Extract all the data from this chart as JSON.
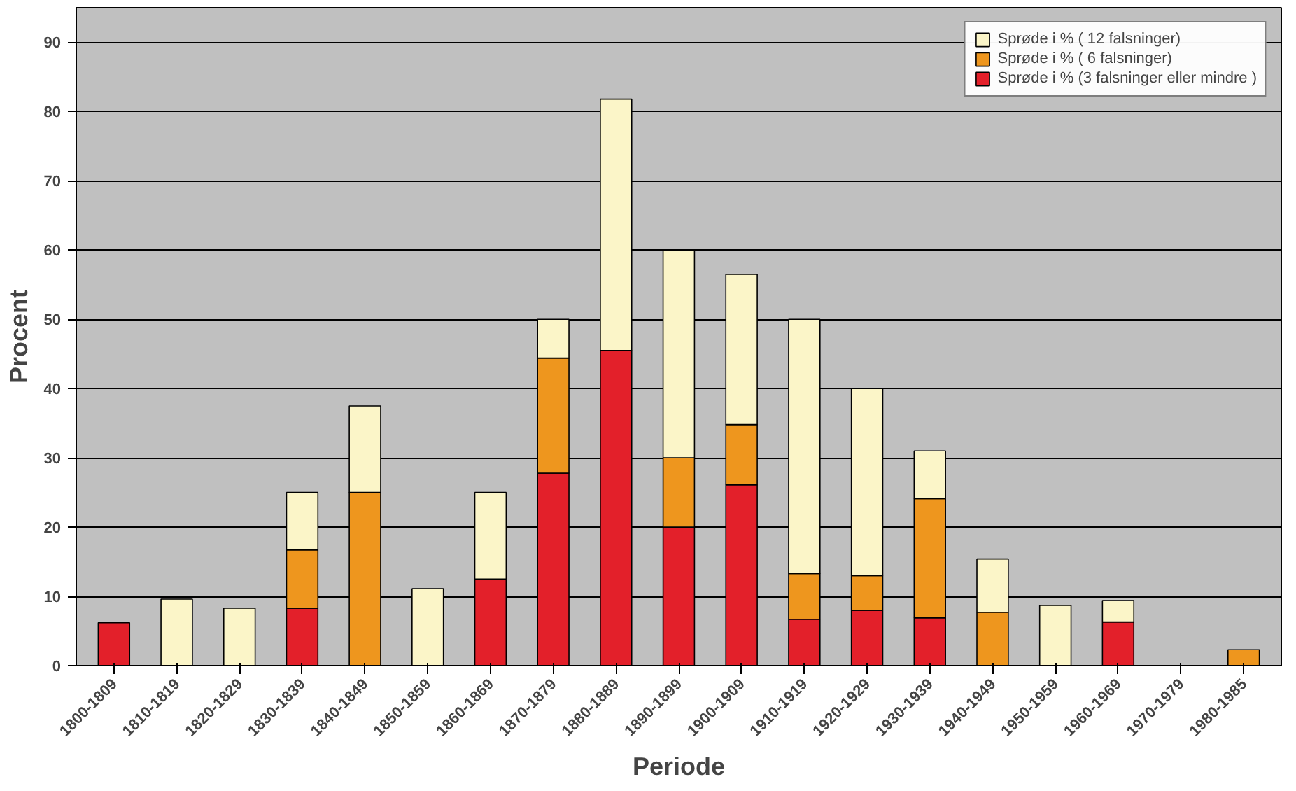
{
  "chart_data": {
    "type": "bar",
    "stacked": true,
    "xlabel": "Periode",
    "ylabel": "Procent",
    "categories": [
      "1800-1809",
      "1810-1819",
      "1820-1829",
      "1830-1839",
      "1840-1849",
      "1850-1859",
      "1860-1869",
      "1870-1879",
      "1880-1889",
      "1890-1899",
      "1900-1909",
      "1910-1919",
      "1920-1929",
      "1930-1939",
      "1940-1949",
      "1950-1959",
      "1960-1969",
      "1970-1979",
      "1980-1985"
    ],
    "series": [
      {
        "name": "Sprøde i % (3 falsninger eller mindre )",
        "color": "#e3202a",
        "values": [
          6.2,
          null,
          null,
          8.3,
          null,
          null,
          12.5,
          27.8,
          45.5,
          20,
          26.1,
          6.7,
          8,
          6.9,
          null,
          null,
          6.3,
          null,
          null
        ]
      },
      {
        "name": "Sprøde i % ( 6 falsninger)",
        "color": "#ee961e",
        "values": [
          null,
          null,
          null,
          8.4,
          25,
          null,
          null,
          16.6,
          null,
          10,
          8.7,
          6.6,
          5,
          17.2,
          7.7,
          null,
          null,
          null,
          2.3
        ]
      },
      {
        "name": "Sprøde i % ( 12 falsninger)",
        "color": "#fbf5c8",
        "values": [
          null,
          9.6,
          8.3,
          8.3,
          12.5,
          11.1,
          12.5,
          5.6,
          36.3,
          30,
          21.7,
          36.7,
          27,
          6.9,
          7.7,
          8.7,
          3.1,
          null,
          null
        ]
      }
    ],
    "ylim": [
      0,
      95
    ],
    "yticks": [
      0,
      10,
      20,
      30,
      40,
      50,
      60,
      70,
      80,
      90
    ],
    "grid": "y",
    "legend": "top right"
  }
}
